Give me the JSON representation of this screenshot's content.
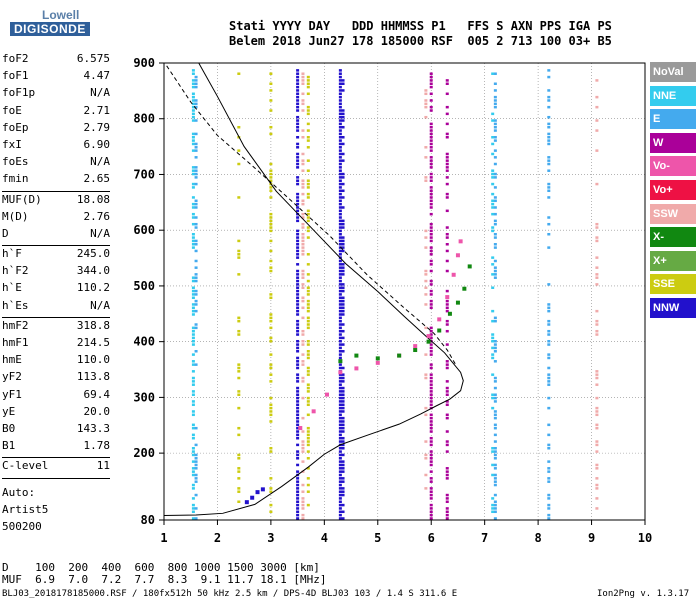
{
  "logo": {
    "line1": "Lowell",
    "line2": "DIGISONDE"
  },
  "header": {
    "row1": "Stati YYYY DAY   DDD HHMMSS P1   FFS S AXN PPS IGA PS",
    "row2": "Belem 2018 Jun27 178 185000 RSF  005 2 713 100 03+ B5"
  },
  "params": [
    {
      "k": "foF2",
      "v": "6.575"
    },
    {
      "k": "foF1",
      "v": "4.47"
    },
    {
      "k": "foF1p",
      "v": "N/A"
    },
    {
      "k": "foE",
      "v": "2.71"
    },
    {
      "k": "foEp",
      "v": "2.79"
    },
    {
      "k": "fxI",
      "v": "6.90"
    },
    {
      "k": "foEs",
      "v": "N/A"
    },
    {
      "k": "fmin",
      "v": "2.65"
    },
    {
      "sep": true
    },
    {
      "k": "MUF(D)",
      "v": "18.08"
    },
    {
      "k": "M(D)",
      "v": "2.76"
    },
    {
      "k": "D",
      "v": "N/A"
    },
    {
      "sep": true
    },
    {
      "k": "h`F",
      "v": "245.0"
    },
    {
      "k": "h`F2",
      "v": "344.0"
    },
    {
      "k": "h`E",
      "v": "110.2"
    },
    {
      "k": "h`Es",
      "v": "N/A"
    },
    {
      "sep": true
    },
    {
      "k": "hmF2",
      "v": "318.8"
    },
    {
      "k": "hmF1",
      "v": "214.5"
    },
    {
      "k": "hmE",
      "v": "110.0"
    },
    {
      "k": "yF2",
      "v": "113.8"
    },
    {
      "k": "yF1",
      "v": "69.4"
    },
    {
      "k": "yE",
      "v": "20.0"
    },
    {
      "k": "B0",
      "v": "143.3"
    },
    {
      "k": "B1",
      "v": "1.78"
    },
    {
      "sep": true
    },
    {
      "k": "C-level",
      "v": "11"
    },
    {
      "sep": true,
      "gap": true
    },
    {
      "k": "Auto:",
      "v": ""
    },
    {
      "k": "Artist5",
      "v": ""
    },
    {
      "k": "500200",
      "v": ""
    }
  ],
  "legend": [
    {
      "label": "NoVal",
      "color": "#9a9a9a"
    },
    {
      "label": "NNE",
      "color": "#33ccee"
    },
    {
      "label": "E",
      "color": "#44aaee"
    },
    {
      "label": "W",
      "color": "#aa0099"
    },
    {
      "label": "Vo-",
      "color": "#ee55aa"
    },
    {
      "label": "Vo+",
      "color": "#ee1144"
    },
    {
      "label": "SSW",
      "color": "#f0aaaa"
    },
    {
      "label": "X-",
      "color": "#118811"
    },
    {
      "label": "X+",
      "color": "#66aa44"
    },
    {
      "label": "SSE",
      "color": "#cccc11"
    },
    {
      "label": "NNW",
      "color": "#2211cc"
    }
  ],
  "footer": {
    "d_row": "D    100  200  400  600  800 1000 1500 3000 [km]",
    "muf_row": "MUF  6.9  7.0  7.2  7.7  8.3  9.1 11.7 18.1 [MHz]",
    "file_info": "BLJ03_2018178185000.RSF / 180fx512h 50 kHz 2.5 km / DPS-4D BLJ03 103 / 1.4 S 311.6 E",
    "version": "Ion2Png v. 1.3.17"
  },
  "chart_data": {
    "type": "scatter",
    "title": "",
    "xlabel": "",
    "ylabel": "",
    "xlim": [
      1,
      10
    ],
    "ylim": [
      80,
      900
    ],
    "xticks": [
      1,
      2,
      3,
      4,
      5,
      6,
      7,
      8,
      9,
      10
    ],
    "yticks": [
      80,
      200,
      300,
      400,
      500,
      600,
      700,
      800,
      900
    ],
    "grid": true,
    "profile_curve": [
      [
        1.0,
        88
      ],
      [
        1.6,
        89
      ],
      [
        2.1,
        92
      ],
      [
        2.7,
        108
      ],
      [
        3.2,
        140
      ],
      [
        3.7,
        175
      ],
      [
        4.0,
        198
      ],
      [
        4.3,
        215
      ],
      [
        4.8,
        232
      ],
      [
        5.4,
        252
      ],
      [
        5.8,
        270
      ],
      [
        6.1,
        285
      ],
      [
        6.35,
        297
      ],
      [
        6.55,
        312
      ],
      [
        6.6,
        330
      ],
      [
        6.55,
        345
      ],
      [
        6.25,
        380
      ],
      [
        5.9,
        410
      ],
      [
        5.5,
        445
      ],
      [
        5.0,
        490
      ],
      [
        4.4,
        540
      ],
      [
        3.8,
        600
      ],
      [
        3.1,
        670
      ],
      [
        2.5,
        750
      ],
      [
        2.0,
        840
      ],
      [
        1.65,
        900
      ]
    ],
    "dashed_curve": [
      [
        1.05,
        895
      ],
      [
        1.5,
        830
      ],
      [
        2.0,
        770
      ],
      [
        2.6,
        720
      ],
      [
        3.3,
        660
      ],
      [
        4.1,
        590
      ],
      [
        4.8,
        520
      ],
      [
        5.5,
        460
      ],
      [
        6.05,
        415
      ],
      [
        6.3,
        385
      ],
      [
        6.45,
        360
      ]
    ],
    "traces": [
      {
        "name": "O-trace",
        "color": "#ee55aa",
        "points": [
          [
            3.55,
            245
          ],
          [
            3.8,
            275
          ],
          [
            4.05,
            305
          ],
          [
            4.3,
            345
          ],
          [
            4.6,
            352
          ],
          [
            5.0,
            362
          ],
          [
            5.4,
            375
          ],
          [
            5.7,
            392
          ],
          [
            5.95,
            410
          ],
          [
            6.15,
            440
          ],
          [
            6.3,
            480
          ],
          [
            6.42,
            520
          ],
          [
            6.5,
            555
          ],
          [
            6.55,
            580
          ]
        ]
      },
      {
        "name": "X-trace",
        "color": "#118811",
        "points": [
          [
            4.3,
            365
          ],
          [
            4.6,
            375
          ],
          [
            5.0,
            370
          ],
          [
            5.4,
            375
          ],
          [
            5.7,
            385
          ],
          [
            5.95,
            400
          ],
          [
            6.15,
            420
          ],
          [
            6.35,
            450
          ],
          [
            6.5,
            470
          ],
          [
            6.62,
            495
          ],
          [
            6.72,
            535
          ]
        ]
      },
      {
        "name": "E-layer",
        "color": "#2211cc",
        "points": [
          [
            2.55,
            112
          ],
          [
            2.65,
            120
          ],
          [
            2.75,
            130
          ],
          [
            2.85,
            135
          ]
        ]
      }
    ]
  }
}
